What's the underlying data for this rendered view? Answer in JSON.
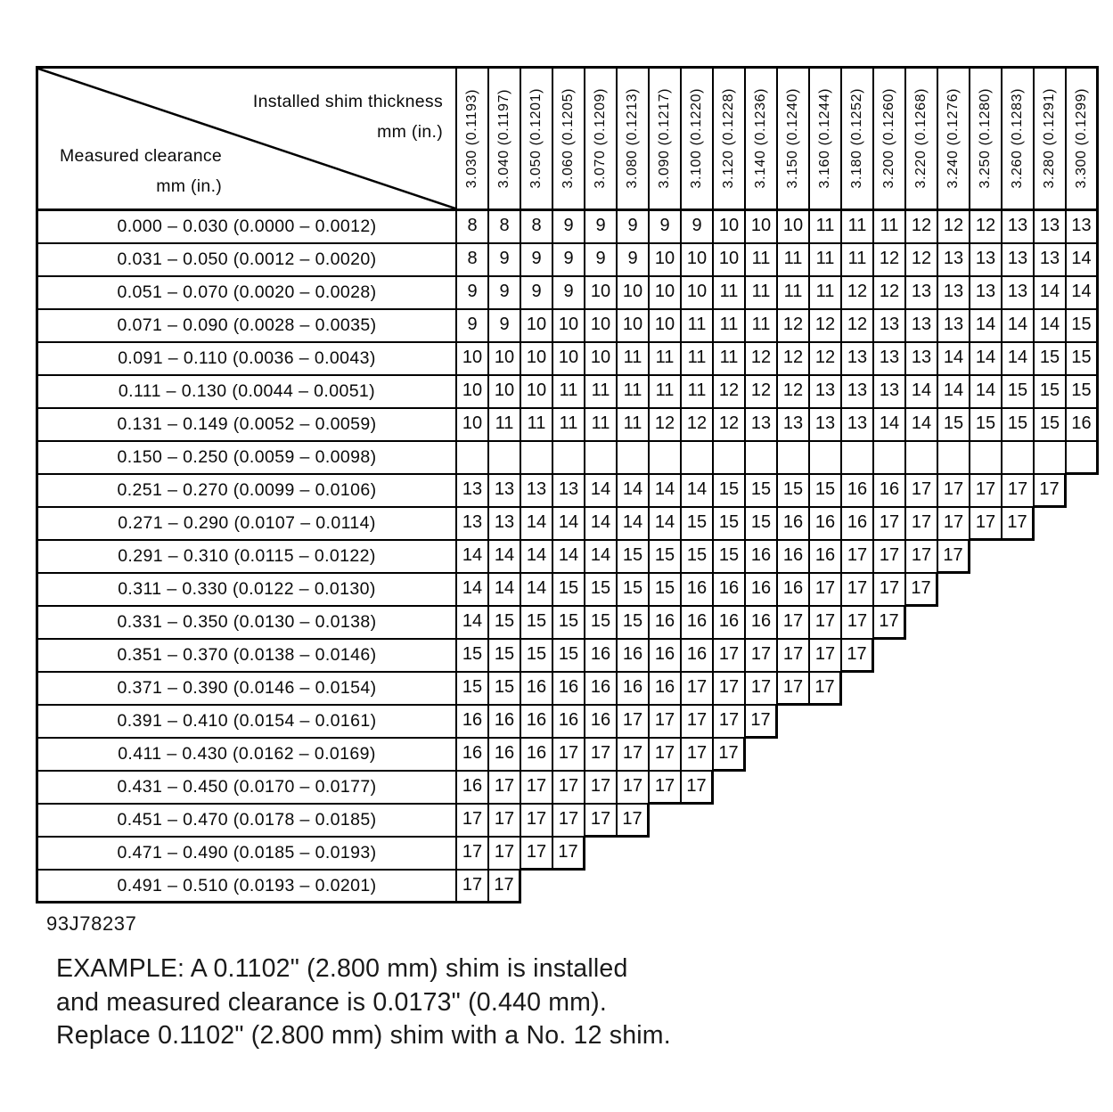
{
  "document": {
    "figure_id": "93J78237"
  },
  "table": {
    "corner": {
      "top_line1": "Installed shim thickness",
      "top_line2": "mm (in.)",
      "bottom_line1": "Measured clearance",
      "bottom_line2": "mm (in.)"
    },
    "columns": [
      "3.030 (0.1193)",
      "3.040 (0.1197)",
      "3.050 (0.1201)",
      "3.060 (0.1205)",
      "3.070 (0.1209)",
      "3.080 (0.1213)",
      "3.090 (0.1217)",
      "3.100 (0.1220)",
      "3.120 (0.1228)",
      "3.140 (0.1236)",
      "3.150 (0.1240)",
      "3.160 (0.1244)",
      "3.180 (0.1252)",
      "3.200 (0.1260)",
      "3.220 (0.1268)",
      "3.240 (0.1276)",
      "3.250 (0.1280)",
      "3.260 (0.1283)",
      "3.280 (0.1291)",
      "3.300 (0.1299)"
    ],
    "rows": [
      {
        "label": "0.000 – 0.030 (0.0000 – 0.0012)",
        "cells": [
          8,
          8,
          8,
          9,
          9,
          9,
          9,
          9,
          10,
          10,
          10,
          11,
          11,
          11,
          12,
          12,
          12,
          13,
          13,
          13
        ]
      },
      {
        "label": "0.031 – 0.050 (0.0012 – 0.0020)",
        "cells": [
          8,
          9,
          9,
          9,
          9,
          9,
          10,
          10,
          10,
          11,
          11,
          11,
          11,
          12,
          12,
          13,
          13,
          13,
          13,
          14
        ]
      },
      {
        "label": "0.051 – 0.070 (0.0020 – 0.0028)",
        "cells": [
          9,
          9,
          9,
          9,
          10,
          10,
          10,
          10,
          11,
          11,
          11,
          11,
          12,
          12,
          13,
          13,
          13,
          13,
          14,
          14
        ]
      },
      {
        "label": "0.071 – 0.090 (0.0028 – 0.0035)",
        "cells": [
          9,
          9,
          10,
          10,
          10,
          10,
          10,
          11,
          11,
          11,
          12,
          12,
          12,
          13,
          13,
          13,
          14,
          14,
          14,
          15
        ]
      },
      {
        "label": "0.091 – 0.110 (0.0036 – 0.0043)",
        "cells": [
          10,
          10,
          10,
          10,
          10,
          11,
          11,
          11,
          11,
          12,
          12,
          12,
          13,
          13,
          13,
          14,
          14,
          14,
          15,
          15
        ]
      },
      {
        "label": "0.111 – 0.130 (0.0044 – 0.0051)",
        "cells": [
          10,
          10,
          10,
          11,
          11,
          11,
          11,
          11,
          12,
          12,
          12,
          13,
          13,
          13,
          14,
          14,
          14,
          15,
          15,
          15
        ]
      },
      {
        "label": "0.131 – 0.149 (0.0052 – 0.0059)",
        "cells": [
          10,
          11,
          11,
          11,
          11,
          11,
          12,
          12,
          12,
          13,
          13,
          13,
          13,
          14,
          14,
          15,
          15,
          15,
          15,
          16
        ]
      },
      {
        "label": "0.150 – 0.250 (0.0059 – 0.0098)",
        "cells": [
          "",
          "",
          "",
          "",
          "",
          "",
          "",
          "",
          "",
          "",
          "",
          "",
          "",
          "",
          "",
          "",
          "",
          "",
          "",
          ""
        ]
      },
      {
        "label": "0.251 – 0.270 (0.0099 – 0.0106)",
        "cells": [
          13,
          13,
          13,
          13,
          14,
          14,
          14,
          14,
          15,
          15,
          15,
          15,
          16,
          16,
          17,
          17,
          17,
          17,
          17
        ]
      },
      {
        "label": "0.271 – 0.290 (0.0107 – 0.0114)",
        "cells": [
          13,
          13,
          14,
          14,
          14,
          14,
          14,
          15,
          15,
          15,
          16,
          16,
          16,
          17,
          17,
          17,
          17,
          17
        ]
      },
      {
        "label": "0.291 – 0.310 (0.0115 – 0.0122)",
        "cells": [
          14,
          14,
          14,
          14,
          14,
          15,
          15,
          15,
          15,
          16,
          16,
          16,
          17,
          17,
          17,
          17
        ]
      },
      {
        "label": "0.311 – 0.330 (0.0122 – 0.0130)",
        "cells": [
          14,
          14,
          14,
          15,
          15,
          15,
          15,
          16,
          16,
          16,
          16,
          17,
          17,
          17,
          17
        ]
      },
      {
        "label": "0.331 – 0.350 (0.0130 – 0.0138)",
        "cells": [
          14,
          15,
          15,
          15,
          15,
          15,
          16,
          16,
          16,
          16,
          17,
          17,
          17,
          17
        ]
      },
      {
        "label": "0.351 – 0.370 (0.0138 – 0.0146)",
        "cells": [
          15,
          15,
          15,
          15,
          16,
          16,
          16,
          16,
          17,
          17,
          17,
          17,
          17
        ]
      },
      {
        "label": "0.371 – 0.390 (0.0146 – 0.0154)",
        "cells": [
          15,
          15,
          16,
          16,
          16,
          16,
          16,
          17,
          17,
          17,
          17,
          17
        ]
      },
      {
        "label": "0.391 – 0.410 (0.0154 – 0.0161)",
        "cells": [
          16,
          16,
          16,
          16,
          16,
          17,
          17,
          17,
          17,
          17
        ]
      },
      {
        "label": "0.411 – 0.430 (0.0162 – 0.0169)",
        "cells": [
          16,
          16,
          16,
          17,
          17,
          17,
          17,
          17,
          17
        ]
      },
      {
        "label": "0.431 – 0.450 (0.0170 – 0.0177)",
        "cells": [
          16,
          17,
          17,
          17,
          17,
          17,
          17,
          17
        ]
      },
      {
        "label": "0.451 – 0.470 (0.0178 – 0.0185)",
        "cells": [
          17,
          17,
          17,
          17,
          17,
          17
        ]
      },
      {
        "label": "0.471 – 0.490 (0.0185 – 0.0193)",
        "cells": [
          17,
          17,
          17,
          17
        ]
      },
      {
        "label": "0.491 – 0.510 (0.0193 – 0.0201)",
        "cells": [
          17,
          17
        ]
      }
    ]
  },
  "footer": {
    "example_lines": [
      "EXAMPLE:  A 0.1102\" (2.800 mm) shim is installed",
      "and measured clearance is 0.0173\" (0.440 mm).",
      "Replace 0.1102\" (2.800 mm) shim with a No. 12 shim."
    ]
  }
}
